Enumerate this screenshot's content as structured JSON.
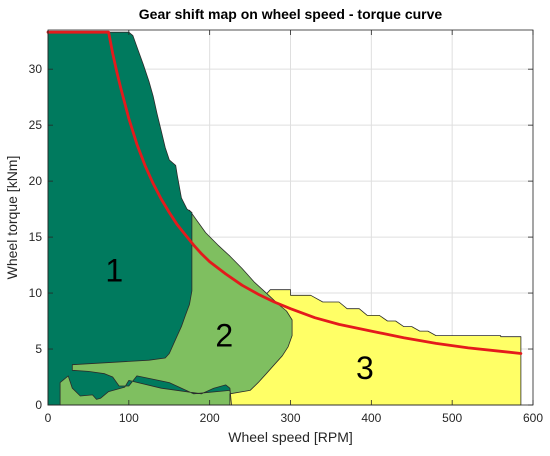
{
  "chart_data": {
    "type": "area",
    "title": "Gear shift map on wheel speed - torque curve",
    "xlabel": "Wheel speed [RPM]",
    "ylabel": "Wheel torque [kNm]",
    "xlim": [
      0,
      600
    ],
    "ylim": [
      0,
      33.5
    ],
    "xticks": [
      0,
      100,
      200,
      300,
      400,
      500,
      600
    ],
    "yticks": [
      0,
      5,
      10,
      15,
      20,
      25,
      30
    ],
    "grid": true,
    "colors": {
      "gear1": "#007a5e",
      "gear2": "#7fbf60",
      "gear3": "#ffff66",
      "curve": "#e41a1c",
      "region_edge": "#2b2b2b"
    },
    "regions": [
      {
        "label": "3",
        "label_pos": [
          392,
          3.3
        ],
        "fill": "#ffff66",
        "points": [
          [
            0,
            0
          ],
          [
            585,
            0
          ],
          [
            585,
            6.1
          ],
          [
            560,
            6.1
          ],
          [
            560,
            6.2
          ],
          [
            480,
            6.2
          ],
          [
            470,
            6.6
          ],
          [
            460,
            6.6
          ],
          [
            450,
            7.0
          ],
          [
            440,
            7.0
          ],
          [
            430,
            7.5
          ],
          [
            420,
            7.5
          ],
          [
            410,
            8.0
          ],
          [
            395,
            8.0
          ],
          [
            385,
            8.6
          ],
          [
            370,
            8.6
          ],
          [
            360,
            9.2
          ],
          [
            340,
            9.2
          ],
          [
            325,
            9.8
          ],
          [
            300,
            9.8
          ],
          [
            300,
            10.3
          ],
          [
            275,
            10.3
          ],
          [
            265,
            9.5
          ],
          [
            250,
            9.2
          ],
          [
            240,
            8.0
          ],
          [
            230,
            6.8
          ],
          [
            220,
            4.6
          ],
          [
            210,
            3.8
          ],
          [
            0,
            3.8
          ],
          [
            0,
            4.8
          ],
          [
            5,
            5.2
          ],
          [
            15,
            6.0
          ],
          [
            15,
            7.6
          ],
          [
            5,
            7.8
          ],
          [
            0,
            7.9
          ]
        ]
      },
      {
        "label": "2",
        "label_pos": [
          218,
          6.2
        ],
        "fill": "#7fbf60",
        "points": [
          [
            0,
            0
          ],
          [
            225,
            0
          ],
          [
            225,
            1.0
          ],
          [
            250,
            1.3
          ],
          [
            260,
            2.0
          ],
          [
            270,
            2.8
          ],
          [
            280,
            3.6
          ],
          [
            290,
            4.4
          ],
          [
            297,
            5.2
          ],
          [
            302,
            6.2
          ],
          [
            302,
            7.6
          ],
          [
            295,
            8.4
          ],
          [
            285,
            9.0
          ],
          [
            270,
            10.0
          ],
          [
            255,
            11.0
          ],
          [
            240,
            12.2
          ],
          [
            225,
            13.3
          ],
          [
            210,
            14.3
          ],
          [
            195,
            15.4
          ],
          [
            185,
            16.4
          ],
          [
            175,
            17.4
          ],
          [
            168,
            16.8
          ],
          [
            150,
            17.8
          ],
          [
            150,
            14.0
          ],
          [
            140,
            9.0
          ],
          [
            140,
            5.5
          ],
          [
            95,
            5.5
          ],
          [
            30,
            3.6
          ],
          [
            0,
            3.6
          ],
          [
            0,
            13.8
          ],
          [
            5,
            13.5
          ],
          [
            10,
            12.5
          ],
          [
            10,
            4.2
          ],
          [
            15,
            3.6
          ],
          [
            15,
            1.5
          ],
          [
            5,
            1.4
          ],
          [
            5,
            0.5
          ]
        ]
      },
      {
        "label": "1",
        "label_pos": [
          82,
          12.0
        ],
        "fill": "#007a5e",
        "points": [
          [
            0,
            0
          ],
          [
            15,
            0
          ],
          [
            15,
            2.0
          ],
          [
            25,
            2.6
          ],
          [
            30,
            1.5
          ],
          [
            40,
            0.8
          ],
          [
            55,
            0.9
          ],
          [
            60,
            0.5
          ],
          [
            65,
            0.6
          ],
          [
            75,
            1.2
          ],
          [
            95,
            1.6
          ],
          [
            100,
            2.2
          ],
          [
            140,
            1.5
          ],
          [
            190,
            1.0
          ],
          [
            205,
            1.5
          ],
          [
            220,
            1.8
          ],
          [
            225,
            1.5
          ],
          [
            227,
            0
          ],
          [
            225,
            1.3
          ],
          [
            180,
            1.0
          ],
          [
            150,
            2.0
          ],
          [
            110,
            2.6
          ],
          [
            100,
            1.7
          ],
          [
            88,
            1.7
          ],
          [
            80,
            2.5
          ],
          [
            70,
            2.8
          ],
          [
            50,
            3.0
          ],
          [
            30,
            3.1
          ],
          [
            30,
            3.6
          ],
          [
            125,
            4.0
          ],
          [
            145,
            4.2
          ],
          [
            150,
            4.6
          ],
          [
            160,
            6.2
          ],
          [
            165,
            7.0
          ],
          [
            170,
            8.0
          ],
          [
            175,
            9.0
          ],
          [
            178,
            10.2
          ],
          [
            178,
            17.2
          ],
          [
            172,
            17.5
          ],
          [
            165,
            18.5
          ],
          [
            160,
            20.5
          ],
          [
            158,
            21.4
          ],
          [
            150,
            21.9
          ],
          [
            145,
            23.0
          ],
          [
            140,
            24.5
          ],
          [
            135,
            26.0
          ],
          [
            130,
            27.6
          ],
          [
            125,
            28.9
          ],
          [
            118,
            30.4
          ],
          [
            112,
            31.6
          ],
          [
            105,
            33.0
          ],
          [
            100,
            33.3
          ],
          [
            0,
            33.3
          ]
        ]
      }
    ],
    "series": [
      {
        "type": "line",
        "color": "#e41a1c",
        "x": [
          0,
          75,
          80,
          85,
          90,
          100,
          110,
          120,
          130,
          140,
          150,
          160,
          170,
          180,
          190,
          200,
          220,
          240,
          260,
          280,
          300,
          330,
          360,
          400,
          440,
          480,
          520,
          560,
          585
        ],
        "y": [
          33.3,
          33.3,
          31.4,
          29.8,
          28.3,
          25.6,
          23.3,
          21.4,
          19.8,
          18.4,
          17.2,
          16.1,
          15.2,
          14.3,
          13.5,
          12.8,
          11.7,
          10.7,
          9.9,
          9.2,
          8.6,
          7.8,
          7.2,
          6.6,
          6.0,
          5.5,
          5.1,
          4.8,
          4.6
        ]
      }
    ]
  }
}
